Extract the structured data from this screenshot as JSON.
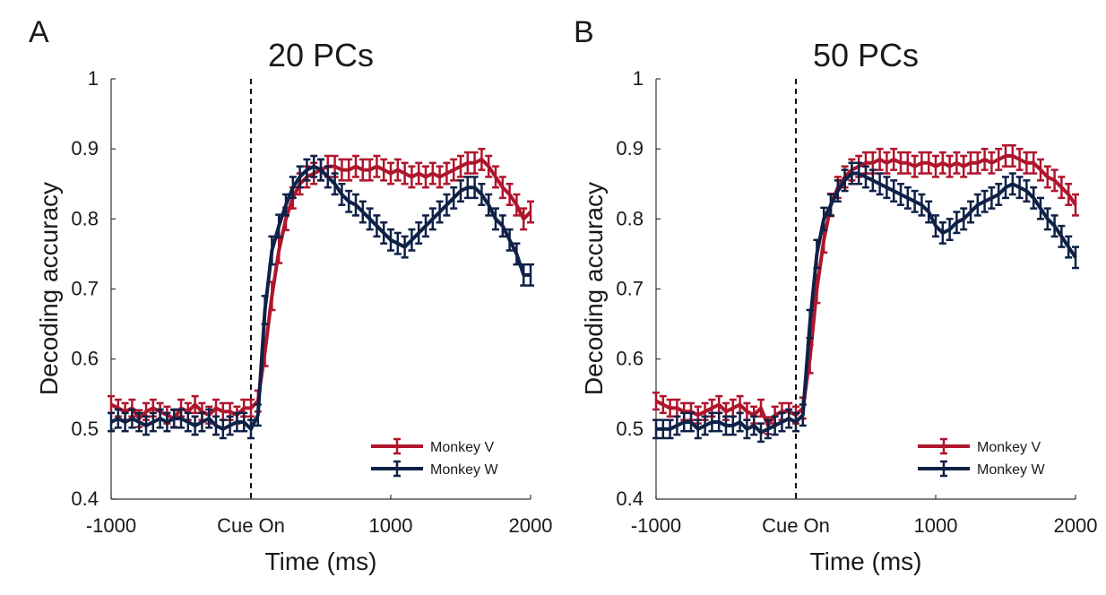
{
  "chart_data": [
    {
      "type": "line",
      "panel_label": "A",
      "title": "20 PCs",
      "xlabel": "Time (ms)",
      "ylabel": "Decoding accuracy",
      "xlim": [
        -1000,
        2000
      ],
      "ylim": [
        0.4,
        1
      ],
      "x_ticks": [
        {
          "value": -1000,
          "label": "-1000"
        },
        {
          "value": 0,
          "label": "Cue On"
        },
        {
          "value": 1000,
          "label": "1000"
        },
        {
          "value": 2000,
          "label": "2000"
        }
      ],
      "y_ticks": [
        {
          "value": 0.4,
          "label": "0.4"
        },
        {
          "value": 0.5,
          "label": "0.5"
        },
        {
          "value": 0.6,
          "label": "0.6"
        },
        {
          "value": 0.7,
          "label": "0.7"
        },
        {
          "value": 0.8,
          "label": "0.8"
        },
        {
          "value": 0.9,
          "label": "0.9"
        },
        {
          "value": 1,
          "label": "1"
        }
      ],
      "cue_line_x": 0,
      "legend_position": "bottom-right",
      "grid": false,
      "series": [
        {
          "name": "Monkey V",
          "color": "#b0152c",
          "x": [
            -1000,
            -950,
            -900,
            -850,
            -800,
            -750,
            -700,
            -650,
            -600,
            -550,
            -500,
            -450,
            -400,
            -350,
            -300,
            -250,
            -200,
            -150,
            -100,
            -50,
            0,
            50,
            100,
            150,
            200,
            250,
            300,
            350,
            400,
            450,
            500,
            550,
            600,
            650,
            700,
            750,
            800,
            850,
            900,
            950,
            1000,
            1050,
            1100,
            1150,
            1200,
            1250,
            1300,
            1350,
            1400,
            1450,
            1500,
            1550,
            1600,
            1650,
            1700,
            1750,
            1800,
            1850,
            1900,
            1950,
            2000
          ],
          "y": [
            0.535,
            0.53,
            0.525,
            0.53,
            0.515,
            0.525,
            0.53,
            0.525,
            0.52,
            0.515,
            0.53,
            0.525,
            0.535,
            0.525,
            0.52,
            0.53,
            0.525,
            0.525,
            0.52,
            0.53,
            0.53,
            0.54,
            0.61,
            0.69,
            0.755,
            0.8,
            0.83,
            0.85,
            0.86,
            0.865,
            0.87,
            0.875,
            0.875,
            0.87,
            0.87,
            0.875,
            0.87,
            0.87,
            0.875,
            0.87,
            0.865,
            0.87,
            0.865,
            0.86,
            0.865,
            0.86,
            0.865,
            0.86,
            0.865,
            0.87,
            0.875,
            0.88,
            0.88,
            0.885,
            0.875,
            0.86,
            0.845,
            0.835,
            0.82,
            0.8,
            0.81
          ],
          "err": [
            0.012,
            0.012,
            0.012,
            0.012,
            0.012,
            0.012,
            0.012,
            0.012,
            0.012,
            0.012,
            0.012,
            0.012,
            0.012,
            0.012,
            0.012,
            0.012,
            0.012,
            0.012,
            0.012,
            0.012,
            0.012,
            0.015,
            0.02,
            0.02,
            0.018,
            0.016,
            0.015,
            0.015,
            0.015,
            0.015,
            0.015,
            0.015,
            0.015,
            0.015,
            0.015,
            0.015,
            0.015,
            0.015,
            0.015,
            0.015,
            0.015,
            0.015,
            0.015,
            0.015,
            0.015,
            0.015,
            0.015,
            0.015,
            0.015,
            0.015,
            0.015,
            0.015,
            0.015,
            0.015,
            0.015,
            0.015,
            0.015,
            0.015,
            0.015,
            0.015,
            0.015
          ]
        },
        {
          "name": "Monkey W",
          "color": "#0f2147",
          "x": [
            -1000,
            -950,
            -900,
            -850,
            -800,
            -750,
            -700,
            -650,
            -600,
            -550,
            -500,
            -450,
            -400,
            -350,
            -300,
            -250,
            -200,
            -150,
            -100,
            -50,
            0,
            50,
            100,
            150,
            200,
            250,
            300,
            350,
            400,
            450,
            500,
            550,
            600,
            650,
            700,
            750,
            800,
            850,
            900,
            950,
            1000,
            1050,
            1100,
            1150,
            1200,
            1250,
            1300,
            1350,
            1400,
            1450,
            1500,
            1550,
            1600,
            1650,
            1700,
            1750,
            1800,
            1850,
            1900,
            1950,
            2000
          ],
          "y": [
            0.51,
            0.515,
            0.51,
            0.515,
            0.51,
            0.505,
            0.51,
            0.515,
            0.51,
            0.515,
            0.515,
            0.51,
            0.505,
            0.51,
            0.515,
            0.505,
            0.5,
            0.505,
            0.51,
            0.51,
            0.5,
            0.52,
            0.67,
            0.755,
            0.79,
            0.82,
            0.845,
            0.86,
            0.87,
            0.875,
            0.87,
            0.86,
            0.85,
            0.835,
            0.825,
            0.82,
            0.81,
            0.8,
            0.79,
            0.78,
            0.77,
            0.765,
            0.76,
            0.77,
            0.78,
            0.79,
            0.8,
            0.81,
            0.82,
            0.83,
            0.84,
            0.845,
            0.845,
            0.835,
            0.82,
            0.8,
            0.79,
            0.77,
            0.75,
            0.72,
            0.72
          ],
          "err": [
            0.013,
            0.013,
            0.013,
            0.013,
            0.013,
            0.013,
            0.013,
            0.013,
            0.013,
            0.013,
            0.013,
            0.013,
            0.013,
            0.013,
            0.013,
            0.013,
            0.013,
            0.013,
            0.013,
            0.013,
            0.013,
            0.015,
            0.02,
            0.02,
            0.016,
            0.015,
            0.015,
            0.015,
            0.015,
            0.015,
            0.015,
            0.015,
            0.015,
            0.015,
            0.015,
            0.015,
            0.015,
            0.015,
            0.015,
            0.015,
            0.015,
            0.015,
            0.015,
            0.015,
            0.015,
            0.015,
            0.015,
            0.015,
            0.015,
            0.015,
            0.015,
            0.015,
            0.015,
            0.015,
            0.015,
            0.015,
            0.015,
            0.015,
            0.015,
            0.015,
            0.015
          ]
        }
      ]
    },
    {
      "type": "line",
      "panel_label": "B",
      "title": "50 PCs",
      "xlabel": "Time (ms)",
      "ylabel": "Decoding accuracy",
      "xlim": [
        -1000,
        2000
      ],
      "ylim": [
        0.4,
        1
      ],
      "x_ticks": [
        {
          "value": -1000,
          "label": "-1000"
        },
        {
          "value": 0,
          "label": "Cue On"
        },
        {
          "value": 1000,
          "label": "1000"
        },
        {
          "value": 2000,
          "label": "2000"
        }
      ],
      "y_ticks": [
        {
          "value": 0.4,
          "label": "0.4"
        },
        {
          "value": 0.5,
          "label": "0.5"
        },
        {
          "value": 0.6,
          "label": "0.6"
        },
        {
          "value": 0.7,
          "label": "0.7"
        },
        {
          "value": 0.8,
          "label": "0.8"
        },
        {
          "value": 0.9,
          "label": "0.9"
        },
        {
          "value": 1,
          "label": "1"
        }
      ],
      "cue_line_x": 0,
      "legend_position": "bottom-right",
      "grid": false,
      "series": [
        {
          "name": "Monkey V",
          "color": "#b0152c",
          "x": [
            -1000,
            -950,
            -900,
            -850,
            -800,
            -750,
            -700,
            -650,
            -600,
            -550,
            -500,
            -450,
            -400,
            -350,
            -300,
            -250,
            -200,
            -150,
            -100,
            -50,
            0,
            50,
            100,
            150,
            200,
            250,
            300,
            350,
            400,
            450,
            500,
            550,
            600,
            650,
            700,
            750,
            800,
            850,
            900,
            950,
            1000,
            1050,
            1100,
            1150,
            1200,
            1250,
            1300,
            1350,
            1400,
            1450,
            1500,
            1550,
            1600,
            1650,
            1700,
            1750,
            1800,
            1850,
            1900,
            1950,
            2000
          ],
          "y": [
            0.54,
            0.535,
            0.53,
            0.53,
            0.525,
            0.525,
            0.52,
            0.525,
            0.53,
            0.535,
            0.525,
            0.53,
            0.535,
            0.525,
            0.52,
            0.53,
            0.505,
            0.52,
            0.525,
            0.525,
            0.52,
            0.53,
            0.6,
            0.7,
            0.77,
            0.82,
            0.845,
            0.86,
            0.87,
            0.875,
            0.88,
            0.88,
            0.885,
            0.88,
            0.885,
            0.88,
            0.88,
            0.875,
            0.88,
            0.88,
            0.875,
            0.88,
            0.875,
            0.88,
            0.875,
            0.88,
            0.88,
            0.885,
            0.88,
            0.885,
            0.89,
            0.89,
            0.885,
            0.88,
            0.88,
            0.87,
            0.86,
            0.855,
            0.845,
            0.835,
            0.82
          ],
          "err": [
            0.012,
            0.012,
            0.012,
            0.012,
            0.012,
            0.012,
            0.012,
            0.012,
            0.012,
            0.012,
            0.012,
            0.012,
            0.012,
            0.012,
            0.012,
            0.012,
            0.012,
            0.012,
            0.012,
            0.012,
            0.012,
            0.015,
            0.02,
            0.02,
            0.018,
            0.016,
            0.015,
            0.015,
            0.015,
            0.015,
            0.015,
            0.015,
            0.015,
            0.015,
            0.015,
            0.015,
            0.015,
            0.015,
            0.015,
            0.015,
            0.015,
            0.015,
            0.015,
            0.015,
            0.015,
            0.015,
            0.015,
            0.015,
            0.015,
            0.015,
            0.015,
            0.015,
            0.015,
            0.015,
            0.015,
            0.015,
            0.015,
            0.015,
            0.015,
            0.015,
            0.015
          ]
        },
        {
          "name": "Monkey W",
          "color": "#0f2147",
          "x": [
            -1000,
            -950,
            -900,
            -850,
            -800,
            -750,
            -700,
            -650,
            -600,
            -550,
            -500,
            -450,
            -400,
            -350,
            -300,
            -250,
            -200,
            -150,
            -100,
            -50,
            0,
            50,
            100,
            150,
            200,
            250,
            300,
            350,
            400,
            450,
            500,
            550,
            600,
            650,
            700,
            750,
            800,
            850,
            900,
            950,
            1000,
            1050,
            1100,
            1150,
            1200,
            1250,
            1300,
            1350,
            1400,
            1450,
            1500,
            1550,
            1600,
            1650,
            1700,
            1750,
            1800,
            1850,
            1900,
            1950,
            2000
          ],
          "y": [
            0.5,
            0.5,
            0.5,
            0.505,
            0.51,
            0.51,
            0.5,
            0.505,
            0.51,
            0.51,
            0.505,
            0.505,
            0.51,
            0.5,
            0.505,
            0.495,
            0.5,
            0.505,
            0.51,
            0.515,
            0.51,
            0.52,
            0.65,
            0.75,
            0.8,
            0.82,
            0.84,
            0.855,
            0.865,
            0.865,
            0.86,
            0.855,
            0.85,
            0.845,
            0.84,
            0.835,
            0.83,
            0.825,
            0.82,
            0.81,
            0.79,
            0.78,
            0.785,
            0.795,
            0.8,
            0.81,
            0.82,
            0.825,
            0.83,
            0.835,
            0.845,
            0.85,
            0.845,
            0.84,
            0.83,
            0.815,
            0.8,
            0.79,
            0.775,
            0.76,
            0.745
          ],
          "err": [
            0.013,
            0.013,
            0.013,
            0.013,
            0.013,
            0.013,
            0.013,
            0.013,
            0.013,
            0.013,
            0.013,
            0.013,
            0.013,
            0.013,
            0.013,
            0.013,
            0.013,
            0.013,
            0.013,
            0.013,
            0.013,
            0.015,
            0.02,
            0.02,
            0.016,
            0.015,
            0.015,
            0.015,
            0.015,
            0.015,
            0.015,
            0.015,
            0.015,
            0.015,
            0.015,
            0.015,
            0.015,
            0.015,
            0.015,
            0.015,
            0.015,
            0.015,
            0.015,
            0.015,
            0.015,
            0.015,
            0.015,
            0.015,
            0.015,
            0.015,
            0.015,
            0.015,
            0.015,
            0.015,
            0.015,
            0.015,
            0.015,
            0.015,
            0.015,
            0.015,
            0.015
          ]
        }
      ]
    }
  ]
}
